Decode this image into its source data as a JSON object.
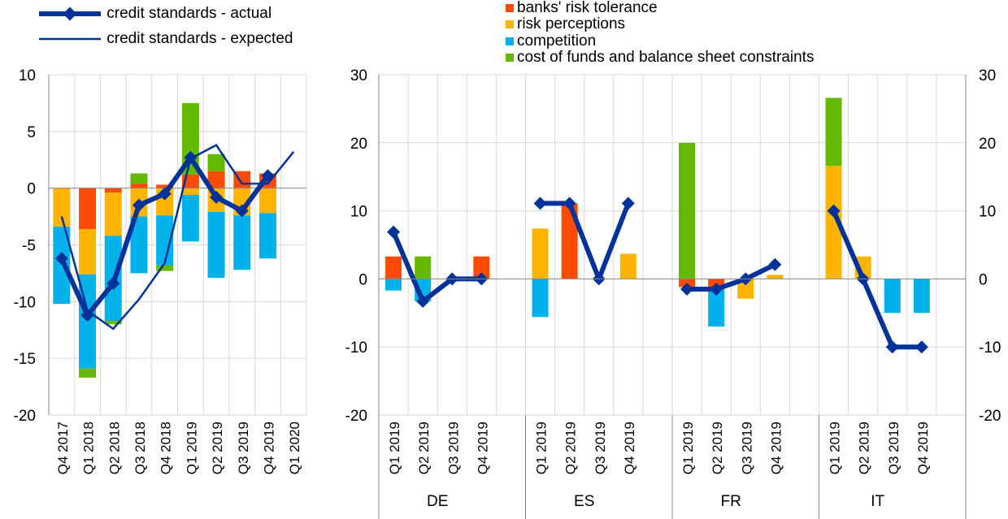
{
  "colors": {
    "banks_risk_tolerance": "#ff4b00",
    "risk_perceptions": "#ffb400",
    "competition": "#00b1ea",
    "cost_of_funds": "#65b800",
    "line": "#003299",
    "grid": "#d9d9d9",
    "axis": "#888888"
  },
  "legend_left": [
    {
      "label": "credit standards - actual",
      "style": "thick-line-diamond"
    },
    {
      "label": "credit standards - expected",
      "style": "thin-line"
    }
  ],
  "legend_right": [
    {
      "label": "banks' risk tolerance",
      "color_key": "banks_risk_tolerance"
    },
    {
      "label": "risk perceptions",
      "color_key": "risk_perceptions"
    },
    {
      "label": "competition",
      "color_key": "competition"
    },
    {
      "label": "cost of funds and balance sheet constraints",
      "color_key": "cost_of_funds"
    }
  ],
  "chart_data": [
    {
      "type": "bar",
      "stacked": true,
      "categories": [
        "Q4 2017",
        "Q1 2018",
        "Q2 2018",
        "Q3 2018",
        "Q4 2018",
        "Q1 2019",
        "Q2 2019",
        "Q3 2019",
        "Q4 2019",
        "Q1 2020"
      ],
      "ylim": [
        -20,
        10
      ],
      "yticks": [
        10,
        5,
        0,
        -5,
        -10,
        -15,
        -20
      ],
      "grid": true,
      "series": [
        {
          "name": "banks' risk tolerance",
          "color_key": "banks_risk_tolerance",
          "values": [
            0,
            -3.6,
            -0.4,
            0.4,
            0.3,
            1.2,
            1.5,
            1.5,
            1.3,
            null
          ]
        },
        {
          "name": "risk perceptions",
          "color_key": "risk_perceptions",
          "values": [
            -3.4,
            -4.0,
            -3.8,
            -2.5,
            -2.4,
            -0.6,
            -2.1,
            -2.4,
            -2.2,
            null
          ]
        },
        {
          "name": "competition",
          "color_key": "competition",
          "values": [
            -6.8,
            -8.3,
            -7.5,
            -5.0,
            -4.4,
            -4.1,
            -5.8,
            -4.8,
            -4.0,
            null
          ]
        },
        {
          "name": "cost of funds and balance sheet constraints",
          "color_key": "cost_of_funds",
          "values": [
            0,
            -0.8,
            -0.3,
            0.9,
            -0.5,
            6.3,
            1.5,
            0,
            0,
            null
          ]
        }
      ],
      "lines": [
        {
          "name": "credit standards - actual",
          "style": "thick-line-diamond",
          "values": [
            -6.2,
            -11.2,
            -8.4,
            -1.5,
            -0.5,
            2.7,
            -0.8,
            -2.0,
            1.1,
            null
          ]
        },
        {
          "name": "credit standards - expected",
          "style": "thin-line",
          "values": [
            -2.5,
            -10.8,
            -12.4,
            -9.8,
            -6.6,
            2.6,
            3.8,
            0.4,
            0.4,
            3.2
          ]
        }
      ]
    },
    {
      "type": "bar",
      "stacked": true,
      "groups": [
        {
          "label": "DE",
          "categories": [
            "Q1 2019",
            "Q2 2019",
            "Q3 2019",
            "Q4 2019"
          ],
          "banks_risk_tolerance": [
            3.3,
            0,
            0,
            3.3
          ],
          "risk_perceptions": [
            0,
            0,
            0,
            0
          ],
          "competition": [
            -1.7,
            -3.3,
            0,
            0
          ],
          "cost_of_funds": [
            0,
            3.3,
            0,
            0
          ],
          "actual": [
            6.9,
            -3.3,
            0,
            0
          ]
        },
        {
          "label": "ES",
          "categories": [
            "Q1 2019",
            "Q2 2019",
            "Q3 2019",
            "Q4 2019"
          ],
          "banks_risk_tolerance": [
            0,
            11.1,
            0,
            0
          ],
          "risk_perceptions": [
            7.4,
            0,
            0,
            3.7
          ],
          "competition": [
            -5.6,
            0,
            0,
            0
          ],
          "cost_of_funds": [
            0,
            0,
            0,
            0
          ],
          "actual": [
            11.1,
            11.1,
            0,
            11.1
          ]
        },
        {
          "label": "FR",
          "categories": [
            "Q1 2019",
            "Q2 2019",
            "Q3 2019",
            "Q4 2019"
          ],
          "banks_risk_tolerance": [
            -1.2,
            -1.5,
            0,
            0
          ],
          "risk_perceptions": [
            0,
            0,
            -2.9,
            0.6
          ],
          "competition": [
            0,
            -5.5,
            0,
            0
          ],
          "cost_of_funds": [
            20.0,
            0,
            0,
            0
          ],
          "actual": [
            -1.5,
            -1.5,
            0,
            2.1
          ]
        },
        {
          "label": "IT",
          "categories": [
            "Q1 2019",
            "Q2 2019",
            "Q3 2019",
            "Q4 2019"
          ],
          "banks_risk_tolerance": [
            0,
            0,
            0,
            0
          ],
          "risk_perceptions": [
            16.6,
            3.3,
            0,
            0
          ],
          "competition": [
            0,
            0,
            -5.0,
            -5.0
          ],
          "cost_of_funds": [
            10.0,
            0,
            0,
            0
          ],
          "actual": [
            10.0,
            0,
            -10.0,
            -10.0
          ]
        }
      ],
      "ylim": [
        -20,
        30
      ],
      "yticks": [
        30,
        20,
        10,
        0,
        -10,
        -20
      ],
      "grid": true,
      "line_name": "credit standards - actual"
    }
  ]
}
